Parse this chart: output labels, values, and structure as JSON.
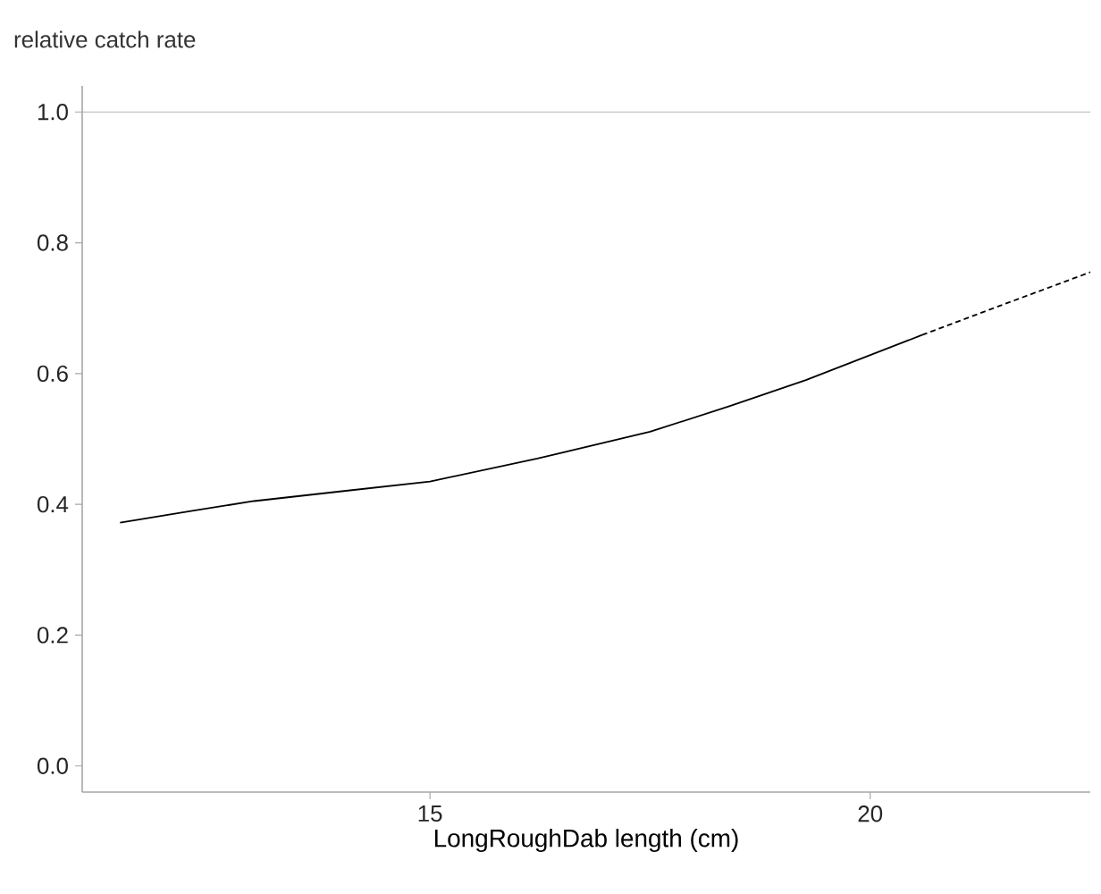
{
  "chart_data": {
    "type": "line",
    "ylabel": "relative catch rate",
    "xlabel": "LongRoughDab length (cm)",
    "xlim": [
      11.05,
      22.5
    ],
    "ylim": [
      -0.04,
      1.04
    ],
    "xticks": [
      15,
      20
    ],
    "yticks": [
      {
        "value": 0,
        "label": "0.0"
      },
      0.2,
      0.4,
      0.6,
      0.8,
      {
        "value": 1,
        "label": "1.0"
      }
    ],
    "marker": "none",
    "ref_lines": [
      {
        "axis": "y",
        "value": 1.0,
        "color": "#b3b3b3"
      }
    ],
    "series": [
      {
        "color": "#000000",
        "line_style": "solid",
        "x": [
          11.48,
          12.3,
          13.0,
          14.0,
          15.0,
          16.22,
          17.5,
          18.4,
          19.27,
          20.59
        ],
        "values": [
          0.372,
          0.39,
          0.405,
          0.42,
          0.435,
          0.47,
          0.511,
          0.55,
          0.59,
          0.659
        ]
      },
      {
        "color": "#000000",
        "line_style": "dashed",
        "x": [
          20.59,
          21.5,
          22.5
        ],
        "values": [
          0.659,
          0.705,
          0.755
        ]
      }
    ]
  }
}
